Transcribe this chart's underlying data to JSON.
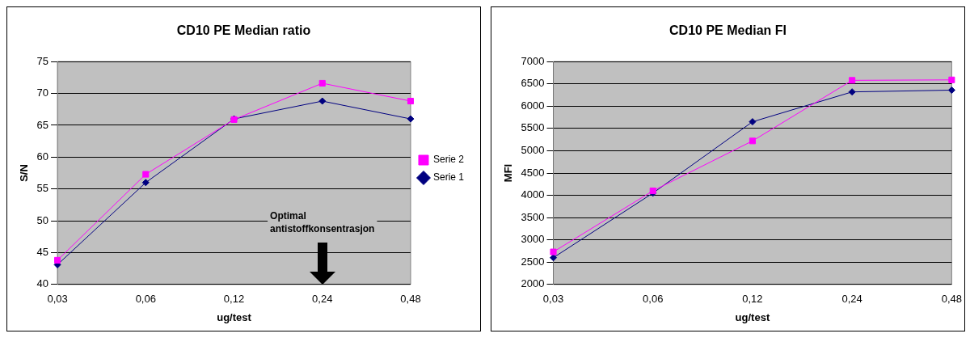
{
  "chart_data": [
    {
      "type": "line",
      "title": "CD10 PE Median ratio",
      "xlabel": "ug/test",
      "ylabel": "S/N",
      "categories": [
        "0,03",
        "0,06",
        "0,12",
        "0,24",
        "0,48"
      ],
      "series": [
        {
          "name": "Serie 1",
          "color": "#000080",
          "marker": "diamond",
          "values": [
            43.1,
            56,
            66,
            68.8,
            66
          ]
        },
        {
          "name": "Serie 2",
          "color": "#ff00ff",
          "marker": "square",
          "values": [
            43.8,
            57.3,
            65.9,
            71.6,
            68.8
          ]
        }
      ],
      "ylim": [
        40,
        75
      ],
      "yticks": [
        40,
        45,
        50,
        55,
        60,
        65,
        70,
        75
      ],
      "grid": "y",
      "legend": "right",
      "annotations": [
        "Optimal antistoffkonsentrasjon"
      ]
    },
    {
      "type": "line",
      "title": "CD10 PE Median FI",
      "xlabel": "ug/test",
      "ylabel": "MFI",
      "categories": [
        "0,03",
        "0,06",
        "0,12",
        "0,24",
        "0,48"
      ],
      "series": [
        {
          "color": "#000080",
          "marker": "diamond",
          "values": [
            2600,
            4050,
            5650,
            6320,
            6360
          ]
        },
        {
          "color": "#ff00ff",
          "marker": "square",
          "values": [
            2730,
            4100,
            5220,
            6580,
            6590
          ]
        }
      ],
      "ylim": [
        2000,
        7000
      ],
      "yticks": [
        2000,
        2500,
        3000,
        3500,
        4000,
        4500,
        5000,
        5500,
        6000,
        6500,
        7000
      ],
      "grid": "y",
      "legend": false
    }
  ]
}
